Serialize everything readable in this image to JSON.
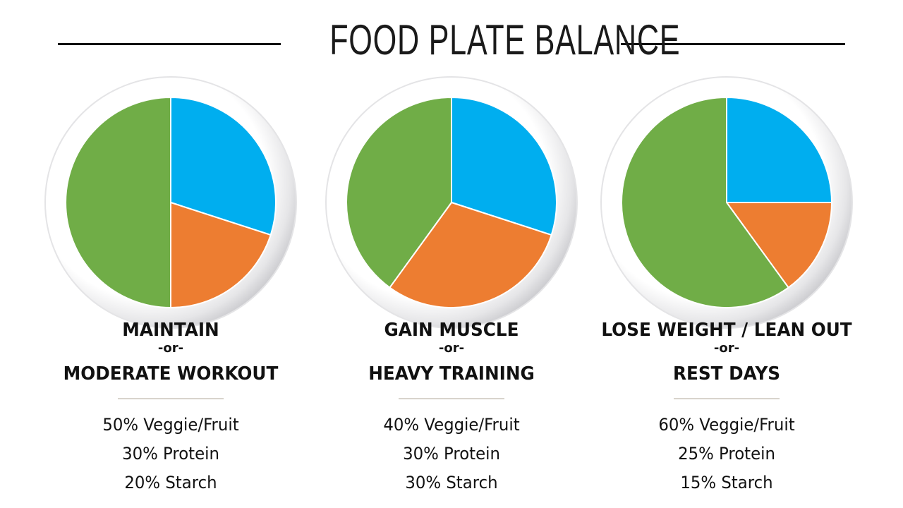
{
  "chart_data": [
    {
      "type": "pie",
      "title": "FOOD PLATE BALANCE",
      "heading": [
        "MAINTAIN",
        "-or-",
        "MODERATE WORKOUT"
      ],
      "slices": [
        {
          "name": "Protein",
          "value": 30,
          "color": "#00aeef"
        },
        {
          "name": "Starch",
          "value": 20,
          "color": "#ed7d31"
        },
        {
          "name": "Veggie/Fruit",
          "value": 50,
          "color": "#70ad47"
        }
      ],
      "labels": [
        "50% Veggie/Fruit",
        "30% Protein",
        "20% Starch"
      ]
    },
    {
      "type": "pie",
      "heading": [
        "GAIN MUSCLE",
        "-or-",
        "HEAVY TRAINING"
      ],
      "slices": [
        {
          "name": "Protein",
          "value": 30,
          "color": "#00aeef"
        },
        {
          "name": "Starch",
          "value": 30,
          "color": "#ed7d31"
        },
        {
          "name": "Veggie/Fruit",
          "value": 40,
          "color": "#70ad47"
        }
      ],
      "labels": [
        "40% Veggie/Fruit",
        "30% Protein",
        "30% Starch"
      ]
    },
    {
      "type": "pie",
      "heading": [
        "LOSE WEIGHT / LEAN OUT",
        "-or-",
        "REST DAYS"
      ],
      "slices": [
        {
          "name": "Protein",
          "value": 25,
          "color": "#00aeef"
        },
        {
          "name": "Starch",
          "value": 15,
          "color": "#ed7d31"
        },
        {
          "name": "Veggie/Fruit",
          "value": 60,
          "color": "#70ad47"
        }
      ],
      "labels": [
        "60% Veggie/Fruit",
        "25% Protein",
        "15% Starch"
      ]
    }
  ]
}
